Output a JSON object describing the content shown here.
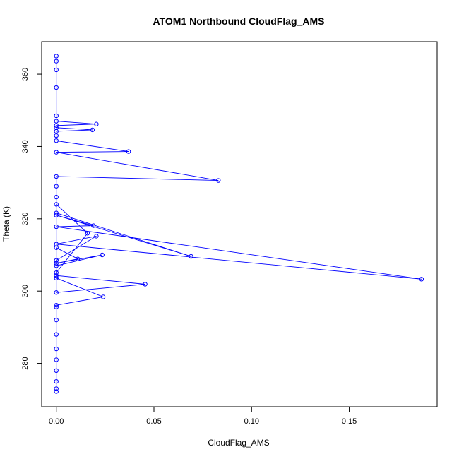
{
  "chart_data": {
    "type": "line",
    "title": "ATOM1 Northbound CloudFlag_AMS",
    "xlabel": "CloudFlag_AMS",
    "ylabel": "Theta (K)",
    "xlim": [
      -0.0075,
      0.195
    ],
    "ylim": [
      268,
      369
    ],
    "xticks": [
      0.0,
      0.05,
      0.1,
      0.15
    ],
    "xtick_labels": [
      "0.00",
      "0.05",
      "0.10",
      "0.15"
    ],
    "yticks": [
      280,
      300,
      320,
      340,
      360
    ],
    "ytick_labels": [
      "280",
      "300",
      "320",
      "340",
      "360"
    ],
    "grid": false,
    "legend": "none",
    "series": [
      {
        "color": "#0000ff",
        "points": [
          [
            0,
            365.0
          ],
          [
            0,
            363.6
          ],
          [
            0,
            361.2
          ],
          [
            0,
            356.3
          ],
          [
            0,
            348.5
          ],
          [
            0,
            347.0
          ],
          [
            0.0205,
            346.2
          ],
          [
            0,
            345.8
          ],
          [
            0,
            345.2
          ],
          [
            0.0185,
            344.6
          ],
          [
            0,
            344.2
          ],
          [
            0,
            343.0
          ],
          [
            0,
            341.6
          ],
          [
            0.037,
            338.6
          ],
          [
            0,
            338.4
          ],
          [
            0.083,
            330.6
          ],
          [
            0,
            331.7
          ],
          [
            0,
            329.0
          ],
          [
            0,
            326.0
          ],
          [
            0,
            321.6
          ],
          [
            0.069,
            309.6
          ],
          [
            0,
            321.0
          ],
          [
            0.019,
            318.1
          ],
          [
            0,
            317.8
          ],
          [
            0.187,
            303.3
          ],
          [
            0,
            313.0
          ],
          [
            0.0205,
            315.2
          ],
          [
            0,
            308.5
          ],
          [
            0,
            324.0
          ],
          [
            0.016,
            316.0
          ],
          [
            0,
            305.1
          ],
          [
            0,
            312.0
          ],
          [
            0.011,
            308.9
          ],
          [
            0,
            307.7
          ],
          [
            0.0235,
            310.0
          ],
          [
            0,
            307.0
          ],
          [
            0,
            304.3
          ],
          [
            0.0455,
            301.9
          ],
          [
            0,
            299.6
          ],
          [
            0,
            303.6
          ],
          [
            0.024,
            298.4
          ],
          [
            0,
            296.1
          ],
          [
            0,
            295.6
          ],
          [
            0,
            292.0
          ],
          [
            0,
            288.0
          ],
          [
            0,
            284.0
          ],
          [
            0,
            281.0
          ],
          [
            0,
            278.0
          ],
          [
            0,
            275.0
          ],
          [
            0,
            273.0
          ],
          [
            0,
            272.2
          ]
        ]
      }
    ]
  }
}
